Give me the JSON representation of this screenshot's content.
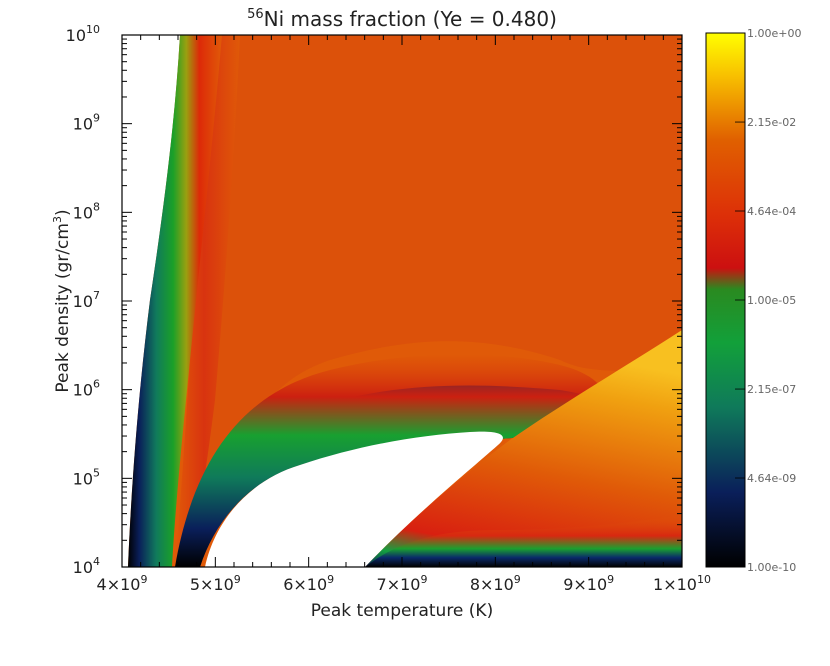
{
  "chart_data": {
    "type": "heatmap",
    "title_prefix": "56",
    "title_text": "Ni mass fraction (Ye = 0.480)",
    "xlabel": "Peak temperature (K)",
    "ylabel_main": "Peak density (gr/cm",
    "ylabel_sup": "3",
    "ylabel_end": ")",
    "x_scale": "linear",
    "y_scale": "log",
    "xlim": [
      4000000000.0,
      10000000000.0
    ],
    "ylim": [
      10000.0,
      10000000000.0
    ],
    "x_ticks": [
      {
        "value": 4000000000.0,
        "mant": "4×10",
        "exp": "9"
      },
      {
        "value": 5000000000.0,
        "mant": "5×10",
        "exp": "9"
      },
      {
        "value": 6000000000.0,
        "mant": "6×10",
        "exp": "9"
      },
      {
        "value": 7000000000.0,
        "mant": "7×10",
        "exp": "9"
      },
      {
        "value": 8000000000.0,
        "mant": "8×10",
        "exp": "9"
      },
      {
        "value": 9000000000.0,
        "mant": "9×10",
        "exp": "9"
      },
      {
        "value": 10000000000.0,
        "mant": "1×10",
        "exp": "10"
      }
    ],
    "y_ticks": [
      {
        "value": 10000.0,
        "base": "10",
        "exp": "4"
      },
      {
        "value": 100000.0,
        "base": "10",
        "exp": "5"
      },
      {
        "value": 1000000.0,
        "base": "10",
        "exp": "6"
      },
      {
        "value": 10000000.0,
        "base": "10",
        "exp": "7"
      },
      {
        "value": 100000000.0,
        "base": "10",
        "exp": "8"
      },
      {
        "value": 1000000000.0,
        "base": "10",
        "exp": "9"
      },
      {
        "value": 10000000000.0,
        "base": "10",
        "exp": "10"
      }
    ],
    "colorbar": {
      "scale": "log",
      "range": [
        1e-10,
        1
      ],
      "labels": [
        "1.00e+00",
        "2.15e-02",
        "4.64e-04",
        "1.00e-05",
        "2.15e-07",
        "4.64e-09",
        "1.00e-10"
      ],
      "label_values": [
        1,
        0.0215,
        0.000464,
        1e-05,
        2.15e-07,
        4.64e-09,
        1e-10
      ],
      "colors": [
        "#000000",
        "#0a1f5a",
        "#0f7a5a",
        "#12a03a",
        "#cc1010",
        "#dd4000",
        "#e06000",
        "#f8c000",
        "#ffff00"
      ]
    },
    "colors": {
      "missing": "#ffffff",
      "nse_plateau": "#e05a08",
      "low_edge": "#000000",
      "high": "#ffff00"
    }
  }
}
